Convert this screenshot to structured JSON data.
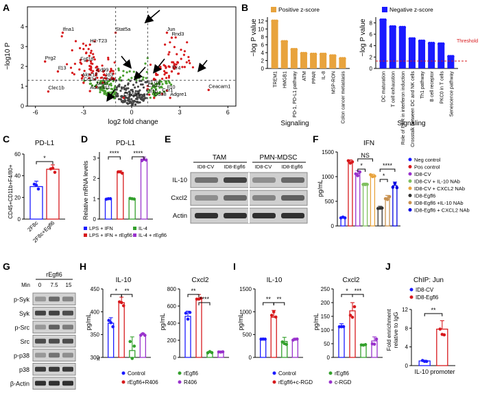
{
  "chart_data": [
    {
      "panel": "A",
      "type": "scatter",
      "xlabel": "log2 fold change",
      "ylabel": "-log10 P",
      "xlim": [
        -6.5,
        6.5
      ],
      "ylim": [
        0,
        5
      ],
      "xticks": [
        "-6",
        "-3",
        "0",
        "3",
        "6"
      ],
      "yticks": [
        "0",
        "1",
        "2",
        "3",
        "4"
      ],
      "labels": [
        {
          "text": "Ifna1",
          "x": -4.3,
          "y": 3.8
        },
        {
          "text": "Stat5a",
          "x": -1.0,
          "y": 3.8
        },
        {
          "text": "Jun",
          "x": 2.2,
          "y": 3.8
        },
        {
          "text": "Rnd3",
          "x": 2.5,
          "y": 3.55
        },
        {
          "text": "H2-T23",
          "x": -2.6,
          "y": 3.2
        },
        {
          "text": "Prg2",
          "x": -5.4,
          "y": 2.35
        },
        {
          "text": "Fgf18",
          "x": -3.2,
          "y": 2.3
        },
        {
          "text": "Il13",
          "x": -4.6,
          "y": 1.85
        },
        {
          "text": "Cd99",
          "x": -2.2,
          "y": 1.75
        },
        {
          "text": "Alox15",
          "x": -3.1,
          "y": 1.5
        },
        {
          "text": "Id3",
          "x": -1.6,
          "y": 1.5
        },
        {
          "text": "Tlr4",
          "x": 2.5,
          "y": 1.85
        },
        {
          "text": "Ccl24",
          "x": -3.0,
          "y": 1.28
        },
        {
          "text": "Chil4",
          "x": -1.8,
          "y": 1.28
        },
        {
          "text": "Il17ra",
          "x": 1.0,
          "y": 1.12
        },
        {
          "text": "Mafb",
          "x": -2.2,
          "y": 1.06
        },
        {
          "text": "Adamts1",
          "x": -2.6,
          "y": 0.86
        },
        {
          "text": "Clec1b",
          "x": -5.2,
          "y": 0.84
        },
        {
          "text": "Cxcl2",
          "x": 1.0,
          "y": 0.96
        },
        {
          "text": "Il10",
          "x": 2.2,
          "y": 0.88
        },
        {
          "text": "Ccr1",
          "x": 1.9,
          "y": 0.72
        },
        {
          "text": "Il1b",
          "x": 1.1,
          "y": 0.68
        },
        {
          "text": "Clec5a",
          "x": -0.5,
          "y": 0.52
        },
        {
          "text": "Cd38",
          "x": 1.4,
          "y": 0.52
        },
        {
          "text": "Adgre1",
          "x": 2.4,
          "y": 0.52
        },
        {
          "text": "Ceacam1",
          "x": 4.8,
          "y": 0.92
        }
      ]
    },
    {
      "panel": "B-left",
      "type": "bar",
      "legend": "Positive z-score",
      "xlabel": "Signaling",
      "ylabel": "-log P value",
      "ylim": [
        0,
        13
      ],
      "yticks": [
        "0",
        "2",
        "4",
        "6",
        "8",
        "10",
        "12"
      ],
      "categories": [
        "TREM1",
        "HMGB1",
        "PD-1, PD-L1 pathway",
        "ATM",
        "PPAR",
        "IL-8",
        "MSP-RON",
        "Colon cancer metastasis"
      ],
      "values": [
        12.0,
        6.8,
        4.8,
        3.8,
        3.6,
        3.6,
        3.2,
        2.5
      ]
    },
    {
      "panel": "B-right",
      "type": "bar",
      "legend": "Negative z-score",
      "xlabel": "Signaling",
      "ylabel": "-log P value",
      "ylim": [
        0,
        9
      ],
      "yticks": [
        "0",
        "2",
        "4",
        "6",
        "8"
      ],
      "threshold_label": "Threshold",
      "threshold": 1.3,
      "categories": [
        "DC maturation",
        "T cell exhaustion",
        "Role of PKR in interferon induction",
        "Crosstalk between DC and NK cells",
        "Th1 pathway",
        "B cell receptor",
        "PKC0 in T cells",
        "Senescence pathway"
      ],
      "values": [
        8.5,
        7.3,
        7.2,
        5.2,
        4.8,
        4.4,
        4.3,
        2.1
      ]
    },
    {
      "panel": "C",
      "type": "bar",
      "title": "PD-L1",
      "ylabel": "CD45+CD11b+F4/80+",
      "categories": [
        "2F8c",
        "2F8c+Egfl6"
      ],
      "values": [
        30,
        46
      ],
      "ylim": [
        0,
        60
      ],
      "yticks": [
        "0",
        "20",
        "40",
        "60"
      ],
      "significance": "*"
    },
    {
      "panel": "D",
      "type": "bar",
      "title": "PD-L1",
      "ylabel": "Relative mRNA levels",
      "ylim": [
        0,
        3.3
      ],
      "yticks": [
        "0",
        "1",
        "2",
        "3"
      ],
      "categories": [
        "LPS + IFN",
        "LPS + IFN + rEgfl6",
        "IL-4",
        "IL-4 + rEgfl6"
      ],
      "values": [
        1.0,
        2.3,
        1.0,
        2.95
      ],
      "significance": [
        "****",
        "****"
      ]
    },
    {
      "panel": "F",
      "type": "bar",
      "title": "IFN",
      "ylabel": "pg/mL",
      "ylim": [
        0,
        1500
      ],
      "yticks": [
        "0",
        "500",
        "1000",
        "1500"
      ],
      "categories": [
        "Neg control",
        "Pos control",
        "ID8-CV",
        "ID8-CV + IL-10 NAb",
        "ID8-CV + CXCL2 NAb",
        "ID8-Egfl6",
        "ID8-Egfl6 +IL-10 NAb",
        "ID8-Egfl6 + CXCL2 NAb"
      ],
      "values": [
        160,
        1290,
        1060,
        830,
        1010,
        340,
        570,
        820
      ],
      "significance": [
        "NS",
        "*",
        "*",
        "****"
      ]
    },
    {
      "panel": "H-left",
      "type": "bar",
      "title": "IL-10",
      "ylabel": "pg/mL",
      "ylim": [
        300,
        450
      ],
      "yticks": [
        "300",
        "350",
        "400",
        "450"
      ],
      "categories": [
        "Control",
        "rEgfl6",
        "rEgfl6+R406",
        "R406"
      ],
      "values": [
        375,
        420,
        315,
        350
      ],
      "significance": [
        "*",
        "**"
      ]
    },
    {
      "panel": "H-right",
      "type": "bar",
      "title": "Cxcl2",
      "ylabel": "pg/mL",
      "ylim": [
        0,
        800
      ],
      "yticks": [
        "0",
        "200",
        "400",
        "600",
        "800"
      ],
      "categories": [
        "Control",
        "rEgfl6",
        "rEgfl6+R406",
        "R406"
      ],
      "values": [
        480,
        690,
        60,
        65
      ],
      "significance": [
        "**",
        "****"
      ]
    },
    {
      "panel": "I-left",
      "type": "bar",
      "title": "IL-10",
      "ylabel": "pg/mL",
      "ylim": [
        0,
        1500
      ],
      "yticks": [
        "0",
        "500",
        "1000",
        "1500"
      ],
      "categories": [
        "Control",
        "rEgfl6",
        "rEgfl6+c-RGD",
        "c-RGD"
      ],
      "values": [
        380,
        880,
        350,
        380
      ],
      "significance": [
        "**",
        "**"
      ]
    },
    {
      "panel": "I-right",
      "type": "bar",
      "title": "Cxcl2",
      "ylabel": "pg/mL",
      "ylim": [
        0,
        250
      ],
      "yticks": [
        "0",
        "50",
        "100",
        "150",
        "200",
        "250"
      ],
      "categories": [
        "Control",
        "rEgfl6",
        "rEgfl6+c-RGD",
        "c-RGD"
      ],
      "values": [
        115,
        170,
        45,
        60
      ],
      "significance": [
        "*",
        "***"
      ]
    },
    {
      "panel": "J",
      "type": "bar",
      "title": "ChIP: Jun",
      "ylabel": "Fold enrichment relative to IgG",
      "ylim": [
        0,
        12
      ],
      "yticks": [
        "0",
        "4",
        "8",
        "12"
      ],
      "xlabel": "IL-10 promoter",
      "categories": [
        "ID8-CV",
        "ID8-Egfl6"
      ],
      "values": [
        1.0,
        7.8
      ],
      "significance": "**"
    }
  ],
  "panel_letters": {
    "a": "A",
    "b": "B",
    "c": "C",
    "d": "D",
    "e": "E",
    "f": "F",
    "g": "G",
    "h": "H",
    "i": "I",
    "j": "J"
  },
  "panelA": {
    "xlabel": "log2 fold change",
    "ylabel": "−log10 P"
  },
  "panelB": {
    "pos_legend": "Positive z-score",
    "neg_legend": "Negative z-score",
    "xlabel": "Signaling",
    "ylabel": "−log P value",
    "threshold": "Threshold"
  },
  "panelC": {
    "title": "PD-L1",
    "ylabel": "CD45+CD11b+F4/80+",
    "sig": "*"
  },
  "panelD": {
    "title": "PD-L1",
    "ylabel": "Relative mRNA levels",
    "sig1": "****",
    "sig2": "****"
  },
  "legendD": [
    "LPS + IFN",
    "IL-4",
    "LPS + IFN + rEgfl6",
    "IL-4 + rEgfl6"
  ],
  "panelE": {
    "groups": [
      "TAM",
      "PMN-MDSC"
    ],
    "lanes": [
      "ID8-CV",
      "ID8-Egfl6",
      "ID8-CV",
      "ID8-Egfl6"
    ],
    "rows": [
      "IL-10",
      "Cxcl2",
      "Actin"
    ]
  },
  "panelF": {
    "title": "IFN",
    "ylabel": "pg/mL",
    "sigNS": "NS",
    "sig1": "*",
    "sig2": "*",
    "sig3": "****"
  },
  "legendF": [
    "Neg control",
    "Pos control",
    "ID8-CV",
    "ID8-CV + IL-10 NAb",
    "ID8-CV + CXCL2 NAb",
    "ID8-Egfl6",
    "ID8-Egfl6 +IL-10 NAb",
    "ID8-Egfl6 + CXCL2 NAb"
  ],
  "panelG": {
    "treatment": "rEgfl6",
    "min_label": "Min",
    "times": [
      "0",
      "7.5",
      "15"
    ],
    "rows": [
      "p-Syk",
      "Syk",
      "p-Src",
      "Src",
      "p-p38",
      "p38",
      "β-Actin"
    ]
  },
  "panelH": {
    "t1": "IL-10",
    "t2": "Cxcl2",
    "ylabel": "pg/mL",
    "s1": "*",
    "s2": "**",
    "s3": "**",
    "s4": "****"
  },
  "legendH": [
    "Control",
    "rEgfl6",
    "rEgfl6+R406",
    "R406"
  ],
  "panelI": {
    "t1": "IL-10",
    "t2": "Cxcl2",
    "ylabel": "pg/mL",
    "s1": "**",
    "s2": "**",
    "s3": "*",
    "s4": "***"
  },
  "legendI": [
    "Control",
    "rEgfl6",
    "rEgfl6+c-RGD",
    "c-RGD"
  ],
  "panelJ": {
    "title": "ChIP: Jun",
    "ylabel1": "Fold enrichment",
    "ylabel2": "relative to IgG",
    "xlabel": "IL-10 promoter",
    "sig": "**"
  },
  "legendJ": [
    "ID8-CV",
    "ID8-Egfl6"
  ],
  "colors": {
    "red": "#d7191c",
    "blue": "#1a1aff",
    "green": "#33a02c",
    "purple": "#9932cc",
    "orange": "#e8a33d",
    "navy": "#0000e0",
    "grey": "#555555",
    "lightgreen": "#7fbf5f",
    "tan": "#c8914f"
  }
}
